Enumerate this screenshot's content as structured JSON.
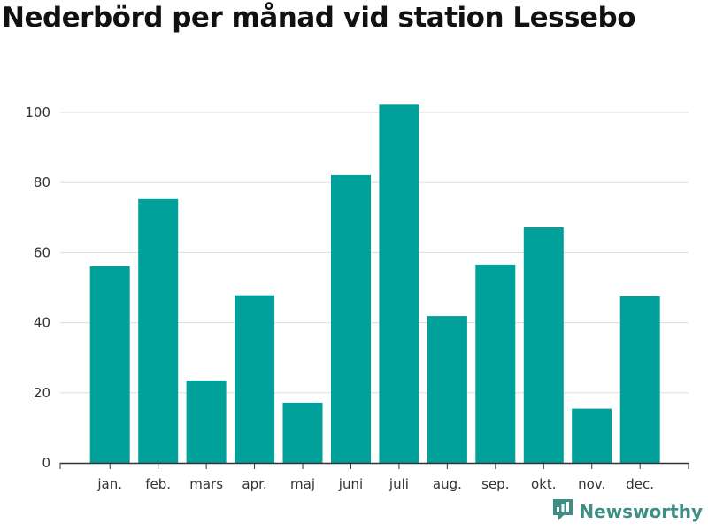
{
  "chart_data": {
    "type": "bar",
    "title": "Nederbörd per månad vid station Lessebo",
    "xlabel": "",
    "ylabel": "",
    "categories": [
      "jan.",
      "feb.",
      "mars",
      "apr.",
      "maj",
      "juni",
      "juli",
      "aug.",
      "sep.",
      "okt.",
      "nov.",
      "dec."
    ],
    "values": [
      56.1,
      75.3,
      23.5,
      47.8,
      17.2,
      82.1,
      102.2,
      41.9,
      56.6,
      67.2,
      15.5,
      47.5
    ],
    "ylim": [
      0,
      100
    ],
    "yticks": [
      0,
      20,
      40,
      60,
      80,
      100
    ],
    "grid": true,
    "bar_color": "#00a19a",
    "grid_color": "#dddddd"
  },
  "brand": {
    "name": "Newsworthy",
    "icon": "newsworthy-logo-icon",
    "color": "#3d8f86"
  }
}
